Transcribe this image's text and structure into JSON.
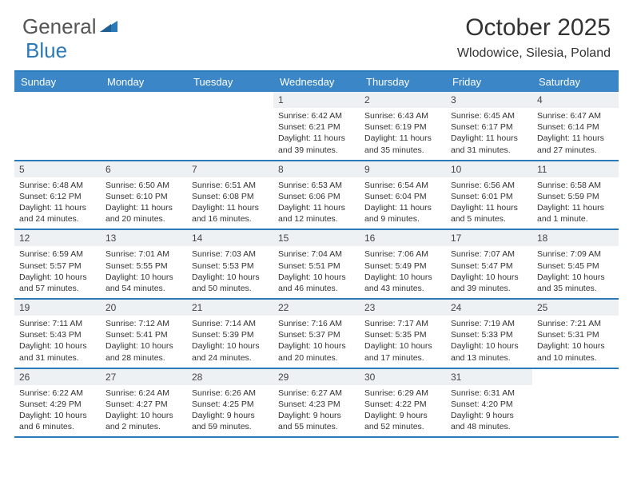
{
  "brand": {
    "part1": "General",
    "part2": "Blue"
  },
  "title": "October 2025",
  "location": "Wlodowice, Silesia, Poland",
  "colors": {
    "header_bg": "#3b86c6",
    "border": "#2a7ab9",
    "daynum_bg": "#eef1f4",
    "text": "#333333",
    "header_text": "#ffffff"
  },
  "dow": [
    "Sunday",
    "Monday",
    "Tuesday",
    "Wednesday",
    "Thursday",
    "Friday",
    "Saturday"
  ],
  "weeks": [
    [
      {
        "n": "",
        "empty": true
      },
      {
        "n": "",
        "empty": true
      },
      {
        "n": "",
        "empty": true
      },
      {
        "n": "1",
        "sr": "6:42 AM",
        "ss": "6:21 PM",
        "dl": "11 hours and 39 minutes."
      },
      {
        "n": "2",
        "sr": "6:43 AM",
        "ss": "6:19 PM",
        "dl": "11 hours and 35 minutes."
      },
      {
        "n": "3",
        "sr": "6:45 AM",
        "ss": "6:17 PM",
        "dl": "11 hours and 31 minutes."
      },
      {
        "n": "4",
        "sr": "6:47 AM",
        "ss": "6:14 PM",
        "dl": "11 hours and 27 minutes."
      }
    ],
    [
      {
        "n": "5",
        "sr": "6:48 AM",
        "ss": "6:12 PM",
        "dl": "11 hours and 24 minutes."
      },
      {
        "n": "6",
        "sr": "6:50 AM",
        "ss": "6:10 PM",
        "dl": "11 hours and 20 minutes."
      },
      {
        "n": "7",
        "sr": "6:51 AM",
        "ss": "6:08 PM",
        "dl": "11 hours and 16 minutes."
      },
      {
        "n": "8",
        "sr": "6:53 AM",
        "ss": "6:06 PM",
        "dl": "11 hours and 12 minutes."
      },
      {
        "n": "9",
        "sr": "6:54 AM",
        "ss": "6:04 PM",
        "dl": "11 hours and 9 minutes."
      },
      {
        "n": "10",
        "sr": "6:56 AM",
        "ss": "6:01 PM",
        "dl": "11 hours and 5 minutes."
      },
      {
        "n": "11",
        "sr": "6:58 AM",
        "ss": "5:59 PM",
        "dl": "11 hours and 1 minute."
      }
    ],
    [
      {
        "n": "12",
        "sr": "6:59 AM",
        "ss": "5:57 PM",
        "dl": "10 hours and 57 minutes."
      },
      {
        "n": "13",
        "sr": "7:01 AM",
        "ss": "5:55 PM",
        "dl": "10 hours and 54 minutes."
      },
      {
        "n": "14",
        "sr": "7:03 AM",
        "ss": "5:53 PM",
        "dl": "10 hours and 50 minutes."
      },
      {
        "n": "15",
        "sr": "7:04 AM",
        "ss": "5:51 PM",
        "dl": "10 hours and 46 minutes."
      },
      {
        "n": "16",
        "sr": "7:06 AM",
        "ss": "5:49 PM",
        "dl": "10 hours and 43 minutes."
      },
      {
        "n": "17",
        "sr": "7:07 AM",
        "ss": "5:47 PM",
        "dl": "10 hours and 39 minutes."
      },
      {
        "n": "18",
        "sr": "7:09 AM",
        "ss": "5:45 PM",
        "dl": "10 hours and 35 minutes."
      }
    ],
    [
      {
        "n": "19",
        "sr": "7:11 AM",
        "ss": "5:43 PM",
        "dl": "10 hours and 31 minutes."
      },
      {
        "n": "20",
        "sr": "7:12 AM",
        "ss": "5:41 PM",
        "dl": "10 hours and 28 minutes."
      },
      {
        "n": "21",
        "sr": "7:14 AM",
        "ss": "5:39 PM",
        "dl": "10 hours and 24 minutes."
      },
      {
        "n": "22",
        "sr": "7:16 AM",
        "ss": "5:37 PM",
        "dl": "10 hours and 20 minutes."
      },
      {
        "n": "23",
        "sr": "7:17 AM",
        "ss": "5:35 PM",
        "dl": "10 hours and 17 minutes."
      },
      {
        "n": "24",
        "sr": "7:19 AM",
        "ss": "5:33 PM",
        "dl": "10 hours and 13 minutes."
      },
      {
        "n": "25",
        "sr": "7:21 AM",
        "ss": "5:31 PM",
        "dl": "10 hours and 10 minutes."
      }
    ],
    [
      {
        "n": "26",
        "sr": "6:22 AM",
        "ss": "4:29 PM",
        "dl": "10 hours and 6 minutes."
      },
      {
        "n": "27",
        "sr": "6:24 AM",
        "ss": "4:27 PM",
        "dl": "10 hours and 2 minutes."
      },
      {
        "n": "28",
        "sr": "6:26 AM",
        "ss": "4:25 PM",
        "dl": "9 hours and 59 minutes."
      },
      {
        "n": "29",
        "sr": "6:27 AM",
        "ss": "4:23 PM",
        "dl": "9 hours and 55 minutes."
      },
      {
        "n": "30",
        "sr": "6:29 AM",
        "ss": "4:22 PM",
        "dl": "9 hours and 52 minutes."
      },
      {
        "n": "31",
        "sr": "6:31 AM",
        "ss": "4:20 PM",
        "dl": "9 hours and 48 minutes."
      },
      {
        "n": "",
        "empty": true
      }
    ]
  ],
  "labels": {
    "sunrise": "Sunrise:",
    "sunset": "Sunset:",
    "daylight": "Daylight:"
  }
}
